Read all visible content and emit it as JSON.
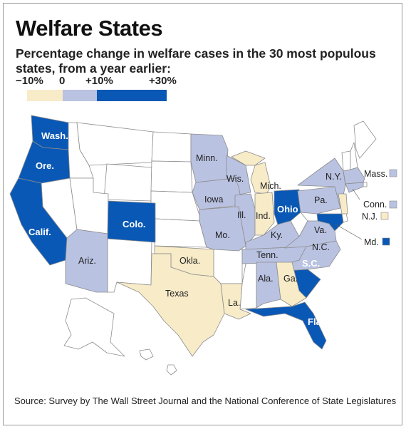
{
  "title": "Welfare States",
  "subtitle": "Percentage change in welfare cases in the 30 most populous states, from a year earlier:",
  "legend": {
    "ticks": [
      "−10%",
      "0",
      "+10%",
      "+30%"
    ],
    "bins": [
      {
        "range": "-10% to 0",
        "color": "#f7ebc8"
      },
      {
        "range": "0 to +10%",
        "color": "#b9c2e1"
      },
      {
        "range": "+10% to +30%",
        "color": "#0a58b5"
      }
    ]
  },
  "colors": {
    "decrease": "#f7ebc8",
    "small_increase": "#b9c2e1",
    "large_increase": "#0a58b5",
    "no_data": "#ffffff",
    "border": "#8c8c8c"
  },
  "states": {
    "wash": "Wash.",
    "ore": "Ore.",
    "calif": "Calif.",
    "colo": "Colo.",
    "ohio": "Ohio",
    "sc": "S.C.",
    "fla": "Fla.",
    "minn": "Minn.",
    "wis": "Wis.",
    "iowa": "Iowa",
    "ill": "Ill.",
    "mo": "Mo.",
    "mich": "Mich.",
    "ind": "Ind.",
    "ky": "Ky.",
    "tenn": "Tenn.",
    "ala": "Ala.",
    "ga": "Ga.",
    "nc": "N.C.",
    "va": "Va.",
    "pa": "Pa.",
    "ny": "N.Y.",
    "mass": "Mass.",
    "conn": "Conn.",
    "nj": "N.J.",
    "md": "Md.",
    "ariz": "Ariz.",
    "okla": "Okla.",
    "texas": "Texas",
    "la": "La."
  },
  "source": "Source: Survey by The Wall Street Journal and the National Conference of State Legislatures"
}
